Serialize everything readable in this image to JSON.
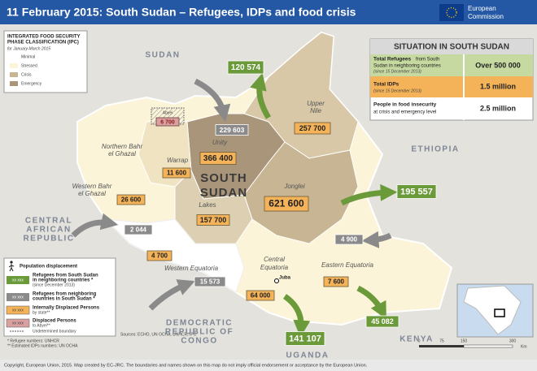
{
  "header": {
    "title": "11 February 2015: South Sudan – Refugees, IDPs and food crisis",
    "logo": [
      "European",
      "Commission"
    ]
  },
  "ipc_legend": {
    "title": [
      "INTEGRATED FOOD SECURITY",
      "PHASE CLASSIFICATION (IPC)"
    ],
    "period": "for January-March 2015",
    "items": [
      "Minimal",
      "Stressed",
      "Crisis",
      "Emergency"
    ]
  },
  "situation": {
    "title": "SITUATION IN SOUTH SUDAN",
    "rows": [
      {
        "label": "Total Refugees",
        "detail": [
          "from South",
          "Sudan in neighboring countries"
        ],
        "note": "(since 15 December 2013)",
        "value": "Over 500 000"
      },
      {
        "label": "Total IDPs",
        "detail": [],
        "note": "(since 15 December 2013)",
        "value": "1.5 million"
      },
      {
        "label": "People in food insecurity",
        "detail": [
          "at crisis and emergency level"
        ],
        "note": "",
        "value": "2.5 million"
      }
    ]
  },
  "map": {
    "countries": [
      "SUDAN",
      "ETHIOPIA",
      "CENTRAL",
      "AFRICAN",
      "REPUBLIC",
      "DEMOCRATIC",
      "REPUBLIC OF",
      "CONGO",
      "KENYA",
      "UGANDA"
    ],
    "south_sudan": [
      "SOUTH",
      "SUDAN"
    ],
    "states": [
      "Upper",
      "Nile",
      "Unity",
      "Northern Bahr",
      "el Ghazal",
      "Warrap",
      "Western Bahr",
      "el Ghazal",
      "Jonglei",
      "Lakes",
      "Western Equatoria",
      "Central",
      "Equatoria",
      "Eastern Equatoria"
    ],
    "capital": "Juba",
    "abyei": {
      "name": "Abyei",
      "value": "6 700"
    },
    "refugees_out": [
      "120 574",
      "195 557",
      "141 107",
      "45 082"
    ],
    "refugees_in": [
      "229 603",
      "2 044",
      "15 573",
      "4 900"
    ],
    "idps": [
      "257 700",
      "366 400",
      "11 600",
      "26 600",
      "621 600",
      "157 700",
      "4 700",
      "64 000",
      "7 600"
    ]
  },
  "displacement_legend": {
    "title": "Population displacement",
    "items": [
      {
        "sample": "xx xxx",
        "label": [
          "Refugees from South Sudan",
          "in neighboring countries *"
        ],
        "note": "(since December 2013)"
      },
      {
        "sample": "xx xxx",
        "label": [
          "Refugees from  neighboring",
          "countries in South Sudan *"
        ],
        "note": ""
      },
      {
        "sample": "xx xxx",
        "label": [
          "Internally Displaced Persons"
        ],
        "note": "by state**"
      },
      {
        "sample": "xx xxx",
        "label": [
          "Displaced Persons"
        ],
        "note": "to Abyei**"
      }
    ],
    "boundary": "Undetermined boundary",
    "footnotes": [
      "* Refugee numbers: UNHCR",
      "** Estimated IDPs numbers: UN OCHA"
    ]
  },
  "sources": "Sources: ECHO, UN OCHA, UNHCR, IPC",
  "scale": [
    "0",
    "75",
    "150",
    "300",
    "Km"
  ],
  "footer": "Copyright, European Union, 2015. Map created by EC-JRC. The boundaries and names shown on this map do not imply official endorsement or acceptance by the European Union."
}
